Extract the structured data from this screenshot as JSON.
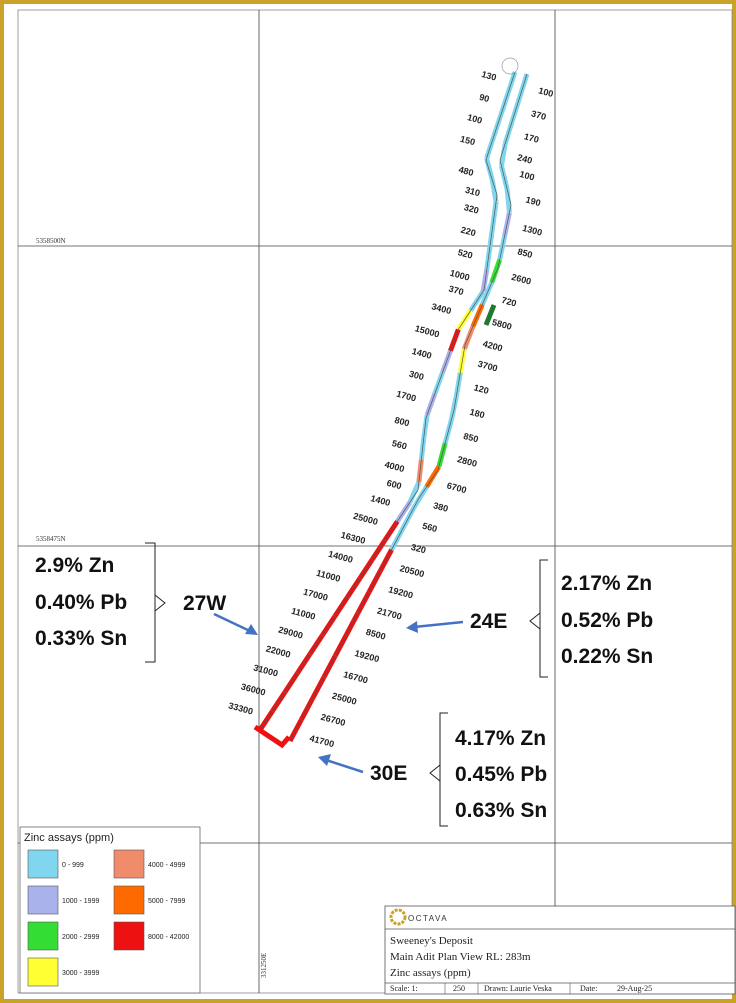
{
  "grid_labels": {
    "northing_1": "5358500N",
    "northing_2": "5358475N",
    "easting_1": "331250E"
  },
  "colors": {
    "border": "#c9a227",
    "bin_0": "#7fd6ee",
    "bin_1": "#aab2ec",
    "bin_2": "#33dd33",
    "bin_3": "#ffff33",
    "bin_4": "#f08c6c",
    "bin_5": "#ff6a00",
    "bin_6": "#ee1111",
    "dark_green": "#1e7a2e",
    "arrow": "#4472c4"
  },
  "west_assays": [
    "130",
    "90",
    "100",
    "150",
    "480",
    "310",
    "320",
    "220",
    "520",
    "1000",
    "370",
    "3400",
    "15000",
    "1400",
    "300",
    "1700",
    "800",
    "560",
    "4000",
    "600",
    "1400",
    "25000",
    "16300",
    "14000",
    "11000",
    "17000",
    "11000",
    "29000",
    "22000",
    "31000",
    "36000",
    "33300"
  ],
  "east_assays": [
    "100",
    "370",
    "170",
    "240",
    "100",
    "190",
    "1300",
    "850",
    "2600",
    "720",
    "5800",
    "4200",
    "3700",
    "120",
    "180",
    "850",
    "2800",
    "6700",
    "380",
    "560",
    "320",
    "20500",
    "19200",
    "21700",
    "8500",
    "19200",
    "16700",
    "25000",
    "26700",
    "41700"
  ],
  "callouts": {
    "west": {
      "label": "27W",
      "zn": "2.9% Zn",
      "pb": "0.40% Pb",
      "sn": "0.33% Sn"
    },
    "east24": {
      "label": "24E",
      "zn": "2.17% Zn",
      "pb": "0.52% Pb",
      "sn": "0.22% Sn"
    },
    "east30": {
      "label": "30E",
      "zn": "4.17% Zn",
      "pb": "0.45% Pb",
      "sn": "0.63% Sn"
    }
  },
  "legend": {
    "title": "Zinc assays (ppm)",
    "bins": [
      "0  -  999",
      "1000  -  1999",
      "2000  -  2999",
      "3000  -  3999",
      "4000  -  4999",
      "5000  -  7999",
      "8000  -  42000"
    ]
  },
  "title_block": {
    "logo": "OCTAVA",
    "line1": "Sweeney's Deposit",
    "line2": "Main Adit Plan View RL: 283m",
    "line3": "Zinc assays (ppm)",
    "scale_label": "Scale: 1:",
    "scale_value": "250",
    "drawn": "Drawn: Laurie Veska",
    "date_label": "Date:",
    "date_value": "29-Aug-25"
  }
}
